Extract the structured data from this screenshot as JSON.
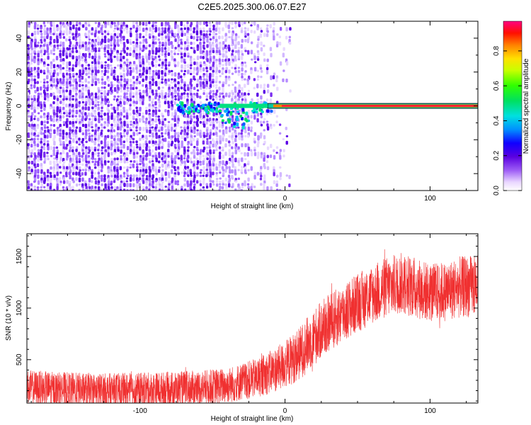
{
  "chart_data": [
    {
      "type": "heatmap",
      "title": "C2E5.2025.300.06.07.E27",
      "xlabel": "Height of straight line (km)",
      "ylabel": "Frequency (Hz)",
      "xlim": [
        -178,
        133
      ],
      "ylim": [
        -50,
        50
      ],
      "xticks": [
        -100,
        0,
        100
      ],
      "xtick_labels": [
        "-100",
        "0",
        "100"
      ],
      "yticks": [
        -40,
        -20,
        0,
        20,
        40
      ],
      "ytick_labels": [
        "-40",
        "-20",
        "0",
        "20",
        "40"
      ],
      "carrier_frequency_hz": 0,
      "carrier_start_km": -12,
      "colorbar": {
        "label": "Normalized spectral amplitude",
        "range": [
          0,
          0.97
        ],
        "ticks": [
          0.0,
          0.2,
          0.4,
          0.6,
          0.8
        ],
        "tick_labels": [
          "0.0",
          "0.2",
          "0.4",
          "0.6",
          "0.8"
        ]
      }
    },
    {
      "type": "line",
      "xlabel": "Height of straight line (km)",
      "ylabel": "SNR (10 * v/v)",
      "xlim": [
        -178,
        133
      ],
      "ylim": [
        80,
        1720
      ],
      "xticks": [
        -100,
        0,
        100
      ],
      "xtick_labels": [
        "-100",
        "0",
        "100"
      ],
      "yticks": [
        500,
        1000,
        1500
      ],
      "ytick_labels": [
        "500",
        "1000",
        "1500"
      ],
      "series": [
        {
          "name": "SNR",
          "color": "#f03030",
          "x": [
            -178,
            -160,
            -140,
            -120,
            -100,
            -80,
            -60,
            -40,
            -20,
            -10,
            0,
            10,
            20,
            30,
            40,
            50,
            60,
            70,
            80,
            90,
            100,
            110,
            120,
            133
          ],
          "mean": [
            230,
            215,
            205,
            200,
            205,
            215,
            225,
            250,
            320,
            380,
            450,
            560,
            720,
            850,
            950,
            1050,
            1130,
            1200,
            1240,
            1200,
            1150,
            1160,
            1200,
            1220
          ],
          "spread": [
            170,
            170,
            170,
            170,
            170,
            170,
            170,
            175,
            190,
            210,
            230,
            260,
            280,
            280,
            290,
            290,
            290,
            300,
            300,
            300,
            290,
            290,
            300,
            300
          ]
        }
      ]
    }
  ]
}
